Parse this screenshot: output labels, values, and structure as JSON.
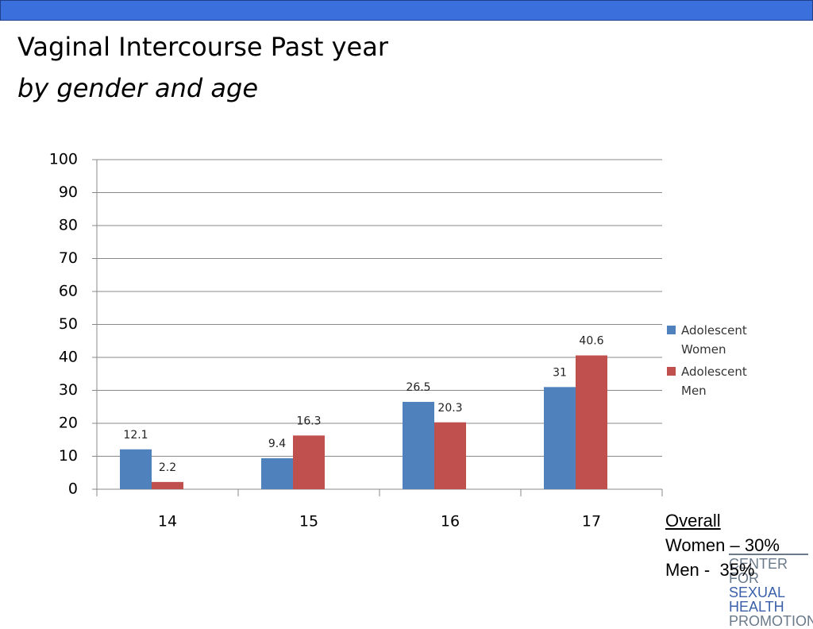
{
  "header": {
    "title": "Vaginal Intercourse Past year",
    "subtitle": "by gender and age"
  },
  "chart_data": {
    "type": "bar",
    "categories": [
      "14",
      "15",
      "16",
      "17"
    ],
    "series": [
      {
        "name": "Adolescent Women",
        "color": "#4f81bd",
        "values": [
          12.1,
          9.4,
          26.5,
          31
        ]
      },
      {
        "name": "Adolescent Men",
        "color": "#c0504d",
        "values": [
          2.2,
          16.3,
          20.3,
          40.6
        ]
      }
    ],
    "ylim": [
      0,
      100
    ],
    "yticks": [
      0,
      10,
      20,
      30,
      40,
      50,
      60,
      70,
      80,
      90,
      100
    ],
    "grid": true,
    "legend": "right"
  },
  "notes": {
    "heading": "Overall",
    "lines": [
      "Women – 30%",
      "Men -  35%"
    ]
  },
  "logo": {
    "lines": [
      "CENTER FOR",
      "SEXUAL HEALTH",
      "PROMOTION"
    ]
  }
}
